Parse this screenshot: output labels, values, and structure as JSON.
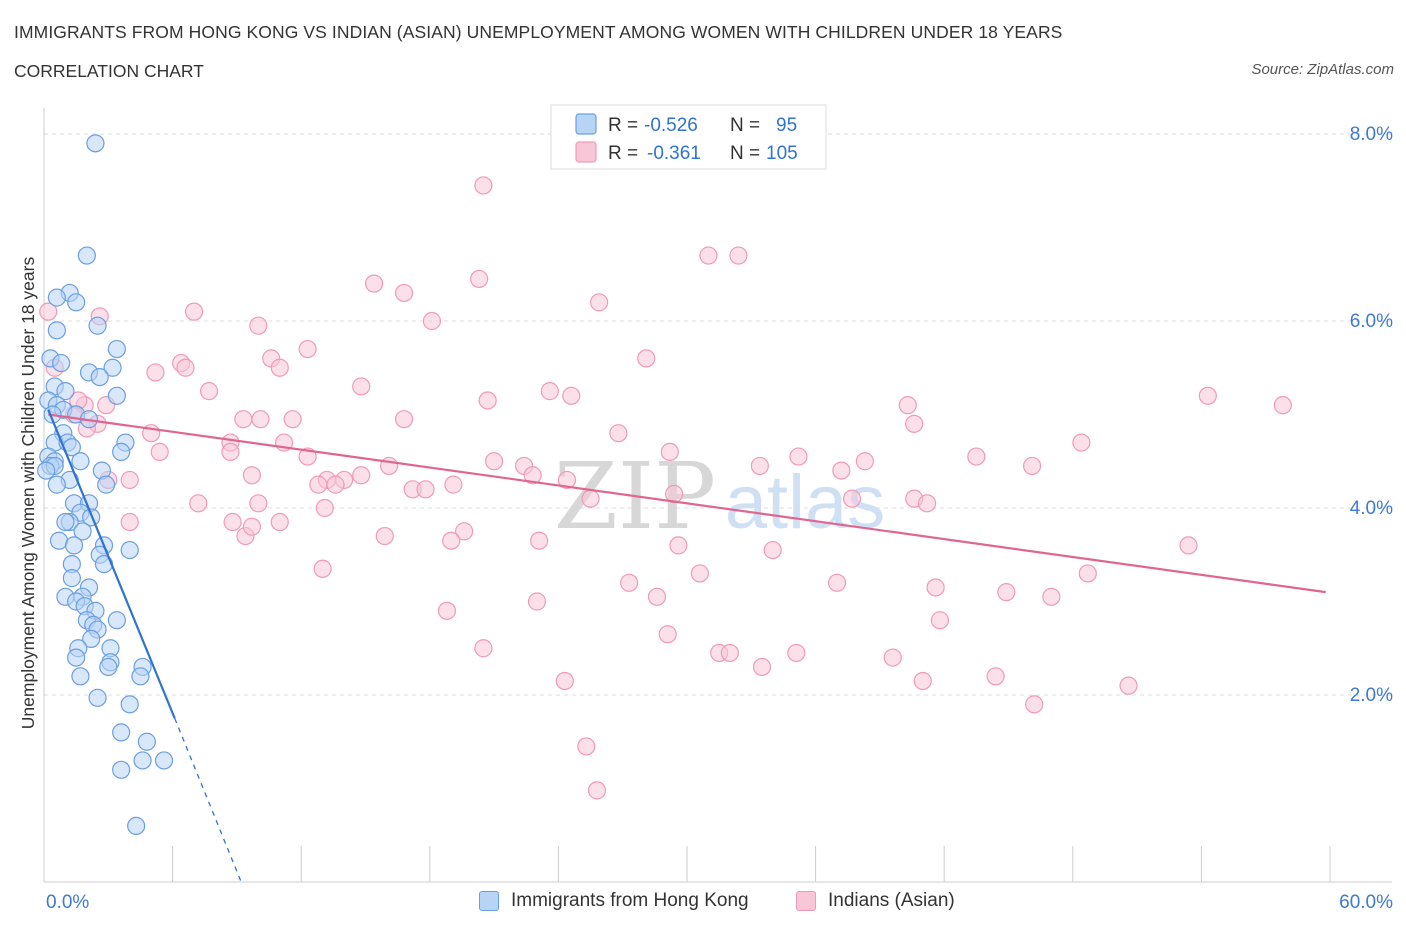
{
  "title": "IMMIGRANTS FROM HONG KONG VS INDIAN (ASIAN) UNEMPLOYMENT AMONG WOMEN WITH CHILDREN UNDER 18 YEARS",
  "subtitle": "CORRELATION CHART",
  "source": "Source: ZipAtlas.com",
  "watermark": {
    "zip": "ZIP",
    "atlas": "atlas"
  },
  "chart_data": {
    "type": "scatter",
    "ylabel": "Unemployment Among Women with Children Under 18 years",
    "xlim": [
      0,
      60
    ],
    "ylim": [
      0,
      8
    ],
    "x_tick_labels": [
      "0.0%",
      "60.0%"
    ],
    "y_ticks": [
      {
        "value": 2,
        "label": "2.0%"
      },
      {
        "value": 4,
        "label": "4.0%"
      },
      {
        "value": 6,
        "label": "6.0%"
      },
      {
        "value": 8,
        "label": "8.0%"
      }
    ],
    "grid": "horizontal dashed",
    "legend_position": "top-center",
    "series": [
      {
        "name": "Immigrants from Hong Kong",
        "color": "#6a9fe0",
        "fill": "#b8d4f5",
        "line_color": "#2f74d0",
        "r_label": "R =",
        "r_value": "-0.526",
        "n_label": "N =",
        "n_value": "95",
        "trend": {
          "x0": 0.2,
          "y0": 5.05,
          "x1": 6.1,
          "y1": 1.75,
          "dash_to_x": 9.2,
          "dash_to_y": 0.0
        },
        "points": [
          [
            2.4,
            7.9
          ],
          [
            2.0,
            6.7
          ],
          [
            1.2,
            6.3
          ],
          [
            1.5,
            6.2
          ],
          [
            0.6,
            6.25
          ],
          [
            2.5,
            5.95
          ],
          [
            0.6,
            5.9
          ],
          [
            3.4,
            5.7
          ],
          [
            0.3,
            5.6
          ],
          [
            0.8,
            5.55
          ],
          [
            2.1,
            5.45
          ],
          [
            3.2,
            5.5
          ],
          [
            2.6,
            5.4
          ],
          [
            0.5,
            5.3
          ],
          [
            1.0,
            5.25
          ],
          [
            3.4,
            5.2
          ],
          [
            0.2,
            5.15
          ],
          [
            0.6,
            5.1
          ],
          [
            0.9,
            5.05
          ],
          [
            1.5,
            5.0
          ],
          [
            2.1,
            4.95
          ],
          [
            0.4,
            5.0
          ],
          [
            0.9,
            4.8
          ],
          [
            0.5,
            4.7
          ],
          [
            1.1,
            4.7
          ],
          [
            3.8,
            4.7
          ],
          [
            1.3,
            4.65
          ],
          [
            3.6,
            4.6
          ],
          [
            0.2,
            4.55
          ],
          [
            0.5,
            4.5
          ],
          [
            1.7,
            4.5
          ],
          [
            0.3,
            4.45
          ],
          [
            0.5,
            4.45
          ],
          [
            0.1,
            4.4
          ],
          [
            2.7,
            4.4
          ],
          [
            1.2,
            4.3
          ],
          [
            0.6,
            4.25
          ],
          [
            2.9,
            4.25
          ],
          [
            1.4,
            4.05
          ],
          [
            2.1,
            4.05
          ],
          [
            1.7,
            3.95
          ],
          [
            2.2,
            3.9
          ],
          [
            1.2,
            3.85
          ],
          [
            1.0,
            3.85
          ],
          [
            1.8,
            3.75
          ],
          [
            0.7,
            3.65
          ],
          [
            1.4,
            3.6
          ],
          [
            2.8,
            3.6
          ],
          [
            4.0,
            3.55
          ],
          [
            2.6,
            3.5
          ],
          [
            1.3,
            3.4
          ],
          [
            2.8,
            3.4
          ],
          [
            1.3,
            3.25
          ],
          [
            2.1,
            3.15
          ],
          [
            1.0,
            3.05
          ],
          [
            1.8,
            3.05
          ],
          [
            1.5,
            3.0
          ],
          [
            1.9,
            2.95
          ],
          [
            2.4,
            2.9
          ],
          [
            2.0,
            2.8
          ],
          [
            3.4,
            2.8
          ],
          [
            2.3,
            2.75
          ],
          [
            2.5,
            2.7
          ],
          [
            2.2,
            2.6
          ],
          [
            1.6,
            2.5
          ],
          [
            3.1,
            2.5
          ],
          [
            1.5,
            2.4
          ],
          [
            3.1,
            2.35
          ],
          [
            3.0,
            2.3
          ],
          [
            4.6,
            2.3
          ],
          [
            1.7,
            2.2
          ],
          [
            4.5,
            2.2
          ],
          [
            2.5,
            1.97
          ],
          [
            4.0,
            1.9
          ],
          [
            3.6,
            1.6
          ],
          [
            4.8,
            1.5
          ],
          [
            4.6,
            1.3
          ],
          [
            5.6,
            1.3
          ],
          [
            3.6,
            1.2
          ],
          [
            4.3,
            0.6
          ]
        ]
      },
      {
        "name": "Indians (Asian)",
        "color": "#f19ab8",
        "fill": "#f8c6d7",
        "line_color": "#e06690",
        "r_label": "R =",
        "r_value": "-0.361",
        "n_label": "N =",
        "n_value": "105",
        "trend": {
          "x0": 0.2,
          "y0": 5.0,
          "x1": 59.8,
          "y1": 3.1
        },
        "points": [
          [
            0.2,
            6.1
          ],
          [
            0.5,
            5.5
          ],
          [
            2.6,
            6.05
          ],
          [
            7.0,
            6.1
          ],
          [
            10.0,
            5.95
          ],
          [
            20.5,
            7.45
          ],
          [
            31.0,
            6.7
          ],
          [
            32.4,
            6.7
          ],
          [
            15.4,
            6.4
          ],
          [
            16.8,
            6.3
          ],
          [
            20.3,
            6.45
          ],
          [
            18.1,
            6.0
          ],
          [
            25.9,
            6.2
          ],
          [
            12.3,
            5.7
          ],
          [
            10.6,
            5.6
          ],
          [
            6.4,
            5.55
          ],
          [
            6.6,
            5.5
          ],
          [
            11.0,
            5.5
          ],
          [
            14.8,
            5.3
          ],
          [
            28.1,
            5.6
          ],
          [
            23.6,
            5.25
          ],
          [
            5.2,
            5.45
          ],
          [
            2.9,
            5.1
          ],
          [
            1.9,
            5.1
          ],
          [
            1.6,
            5.15
          ],
          [
            7.7,
            5.25
          ],
          [
            20.7,
            5.15
          ],
          [
            24.6,
            5.2
          ],
          [
            40.3,
            5.1
          ],
          [
            54.3,
            5.2
          ],
          [
            57.8,
            5.1
          ],
          [
            1.4,
            5.0
          ],
          [
            2.5,
            4.9
          ],
          [
            2.0,
            4.85
          ],
          [
            8.7,
            4.7
          ],
          [
            9.3,
            4.95
          ],
          [
            10.1,
            4.95
          ],
          [
            11.6,
            4.95
          ],
          [
            16.8,
            4.95
          ],
          [
            5.0,
            4.8
          ],
          [
            26.8,
            4.8
          ],
          [
            40.6,
            4.9
          ],
          [
            11.2,
            4.7
          ],
          [
            8.7,
            4.6
          ],
          [
            5.4,
            4.6
          ],
          [
            29.2,
            4.6
          ],
          [
            43.5,
            4.55
          ],
          [
            12.3,
            4.55
          ],
          [
            21.0,
            4.5
          ],
          [
            22.4,
            4.45
          ],
          [
            33.4,
            4.45
          ],
          [
            35.2,
            4.55
          ],
          [
            38.3,
            4.5
          ],
          [
            16.1,
            4.45
          ],
          [
            46.1,
            4.45
          ],
          [
            37.2,
            4.4
          ],
          [
            48.4,
            4.7
          ],
          [
            22.8,
            4.35
          ],
          [
            24.4,
            4.3
          ],
          [
            9.7,
            4.35
          ],
          [
            13.2,
            4.3
          ],
          [
            3.0,
            4.3
          ],
          [
            4.0,
            4.3
          ],
          [
            14.0,
            4.3
          ],
          [
            14.8,
            4.35
          ],
          [
            12.8,
            4.25
          ],
          [
            13.6,
            4.25
          ],
          [
            19.1,
            4.25
          ],
          [
            17.2,
            4.2
          ],
          [
            17.8,
            4.2
          ],
          [
            25.5,
            4.1
          ],
          [
            29.4,
            4.15
          ],
          [
            37.7,
            4.1
          ],
          [
            40.6,
            4.1
          ],
          [
            41.2,
            4.05
          ],
          [
            13.1,
            4.0
          ],
          [
            7.2,
            4.05
          ],
          [
            10.0,
            4.05
          ],
          [
            8.8,
            3.85
          ],
          [
            9.4,
            3.7
          ],
          [
            4.0,
            3.85
          ],
          [
            9.7,
            3.8
          ],
          [
            11.0,
            3.85
          ],
          [
            19.6,
            3.75
          ],
          [
            15.9,
            3.7
          ],
          [
            19.0,
            3.65
          ],
          [
            23.1,
            3.65
          ],
          [
            29.6,
            3.6
          ],
          [
            34.0,
            3.55
          ],
          [
            53.4,
            3.6
          ],
          [
            13.0,
            3.35
          ],
          [
            30.6,
            3.3
          ],
          [
            37.0,
            3.2
          ],
          [
            41.6,
            3.15
          ],
          [
            44.9,
            3.1
          ],
          [
            47.0,
            3.05
          ],
          [
            48.7,
            3.3
          ],
          [
            23.0,
            3.0
          ],
          [
            27.3,
            3.2
          ],
          [
            28.6,
            3.05
          ],
          [
            18.8,
            2.9
          ],
          [
            41.8,
            2.8
          ],
          [
            29.1,
            2.65
          ],
          [
            20.5,
            2.5
          ],
          [
            31.5,
            2.45
          ],
          [
            32.0,
            2.45
          ],
          [
            35.1,
            2.45
          ],
          [
            39.6,
            2.4
          ],
          [
            33.5,
            2.3
          ],
          [
            24.3,
            2.15
          ],
          [
            41.0,
            2.15
          ],
          [
            44.4,
            2.2
          ],
          [
            50.6,
            2.1
          ],
          [
            46.2,
            1.9
          ],
          [
            25.3,
            1.45
          ],
          [
            25.8,
            0.98
          ]
        ]
      }
    ]
  }
}
